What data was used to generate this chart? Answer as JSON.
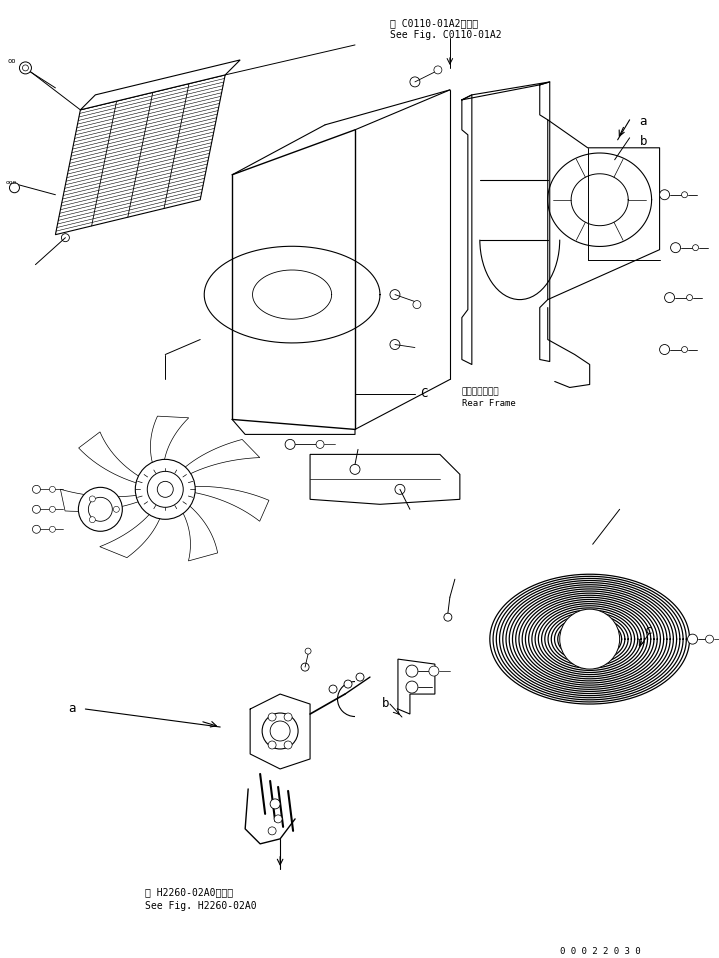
{
  "bg_color": "#ffffff",
  "line_color": "#000000",
  "text_color": "#000000",
  "fig_width": 7.19,
  "fig_height": 9.58,
  "dpi": 100,
  "top_ref_text_line1": "第 C0110-01A2図参照",
  "top_ref_text_line2": "See Fig. C0110-01A2",
  "bottom_ref_text_line1": "第 H2260-02A0図参照",
  "bottom_ref_text_line2": "See Fig. H2260-02A0",
  "rear_frame_line1": "リヤーフレーム",
  "rear_frame_line2": "Rear Frame",
  "part_number": "0 0 0 2 2 0 3 0",
  "font_small": 6.5,
  "font_label": 9
}
